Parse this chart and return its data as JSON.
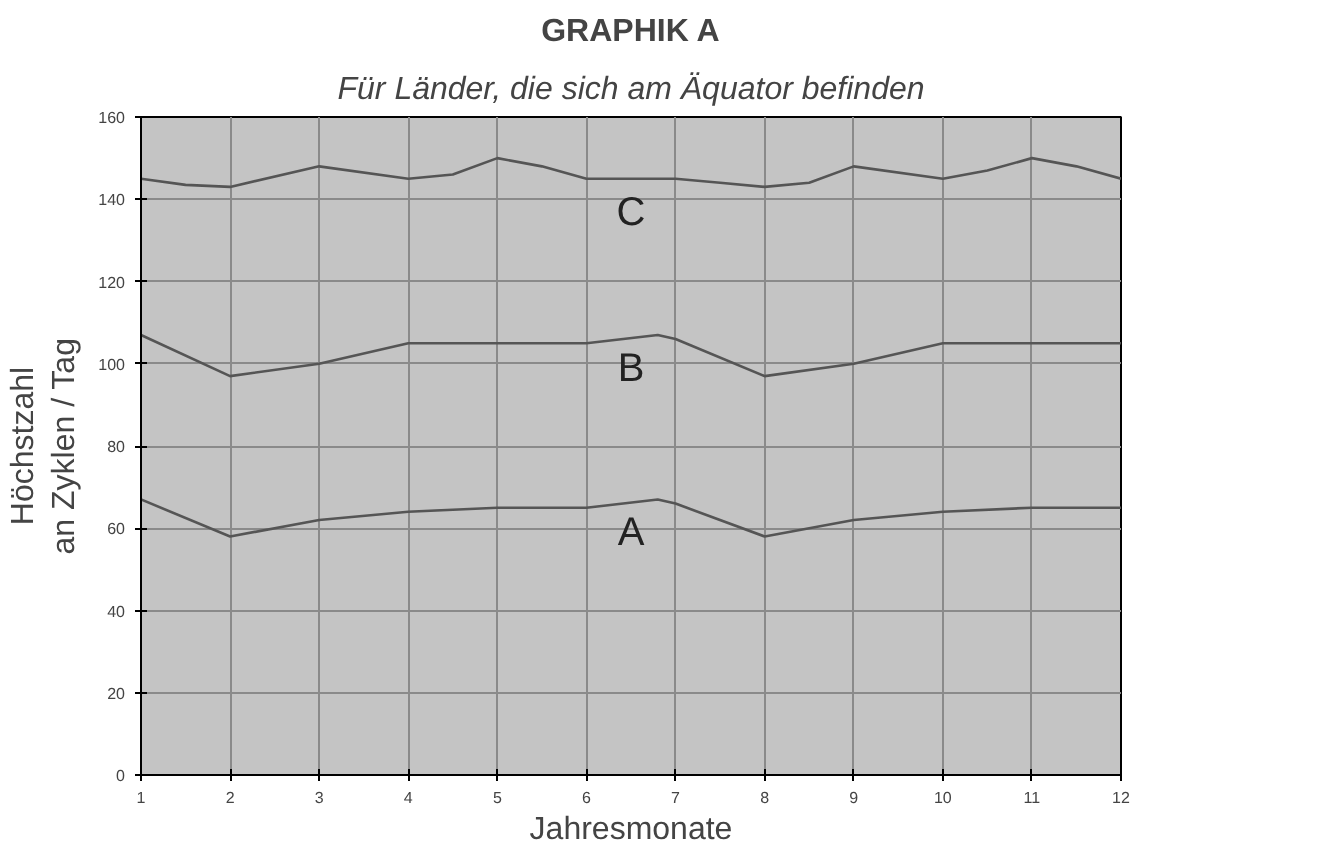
{
  "chart_data": {
    "type": "line",
    "title": "GRAPHIK A",
    "subtitle": "Für Länder, die sich am Äquator befinden",
    "xlabel": "Jahresmonate",
    "ylabel": "Höchstzahl\nan Zyklen / Tag",
    "xlim": [
      1,
      12
    ],
    "ylim": [
      0,
      160
    ],
    "xticks": [
      1,
      2,
      3,
      4,
      5,
      6,
      7,
      8,
      9,
      10,
      11,
      12
    ],
    "yticks": [
      0,
      20,
      40,
      60,
      80,
      100,
      120,
      140,
      160
    ],
    "grid": true,
    "marker": "none",
    "line_style": "solid",
    "series": [
      {
        "name": "C",
        "color": "#555555",
        "x": [
          1,
          1.5,
          2,
          3,
          4,
          4.5,
          5,
          5.5,
          6,
          7,
          7.5,
          8,
          8.5,
          9,
          10,
          10.5,
          11,
          11.5,
          12
        ],
        "values": [
          145,
          143.5,
          143,
          148,
          145,
          146,
          150,
          148,
          145,
          145,
          144,
          143,
          144,
          148,
          145,
          147,
          150,
          148,
          145
        ]
      },
      {
        "name": "B",
        "color": "#555555",
        "x": [
          1,
          2,
          3,
          4,
          5,
          6,
          6.8,
          7,
          8,
          9,
          10,
          11,
          12
        ],
        "values": [
          107,
          97,
          100,
          105,
          105,
          105,
          107,
          106,
          97,
          100,
          105,
          105,
          105
        ]
      },
      {
        "name": "A",
        "color": "#555555",
        "x": [
          1,
          2,
          3,
          4,
          5,
          6,
          6.8,
          7,
          8,
          9,
          10,
          11,
          12
        ],
        "values": [
          67,
          58,
          62,
          64,
          65,
          65,
          67,
          66,
          58,
          62,
          64,
          65,
          65
        ]
      }
    ]
  }
}
